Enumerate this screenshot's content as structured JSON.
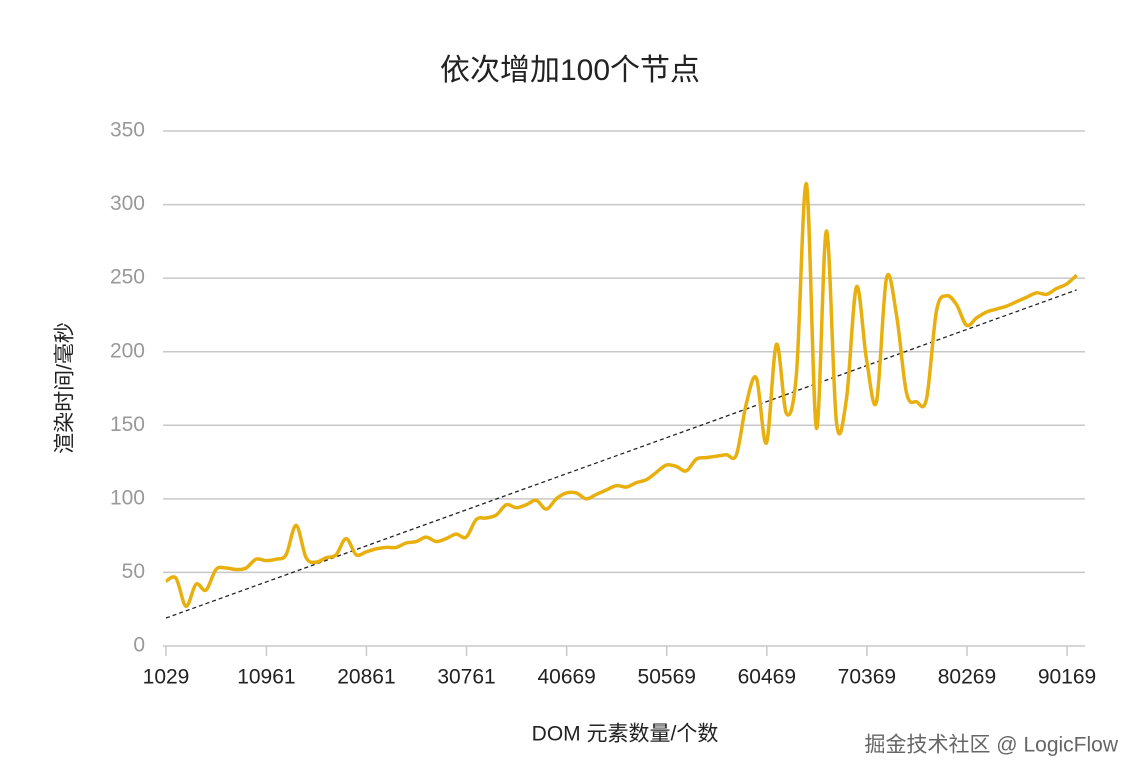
{
  "chart_data": {
    "type": "line",
    "title": "依次增加100个节点",
    "xlabel": "DOM 元素数量/个数",
    "ylabel": "渲染时间/毫秒",
    "x": [
      1029,
      2019,
      3009,
      3999,
      4989,
      5979,
      6969,
      7959,
      8949,
      9939,
      10929,
      11919,
      12909,
      13899,
      14889,
      15879,
      16869,
      17859,
      18849,
      19839,
      20829,
      21819,
      22809,
      23799,
      24789,
      25779,
      26769,
      27759,
      28749,
      29739,
      30729,
      31719,
      32709,
      33699,
      34689,
      35679,
      36669,
      37659,
      38649,
      39639,
      40629,
      41619,
      42609,
      43599,
      44589,
      45579,
      46569,
      47559,
      48549,
      49539,
      50529,
      51519,
      52509,
      53499,
      54489,
      55479,
      56469,
      57459,
      58449,
      59439,
      60429,
      61419,
      62409,
      63399,
      64389,
      65379,
      66369,
      67359,
      68349,
      69339,
      70329,
      71319,
      72309,
      73299,
      74289,
      75279,
      76269,
      77259,
      78249,
      79239,
      80229,
      81219,
      82209,
      83199,
      84189,
      85179,
      86169,
      87159,
      88149,
      89139,
      90129,
      91119
    ],
    "values": [
      44,
      46,
      27,
      42,
      38,
      52,
      53,
      52,
      53,
      59,
      58,
      59,
      62,
      82,
      60,
      57,
      60,
      62,
      73,
      62,
      64,
      66,
      67,
      67,
      70,
      71,
      74,
      71,
      73,
      76,
      74,
      86,
      87,
      89,
      96,
      94,
      96,
      99,
      93,
      100,
      104,
      104,
      100,
      103,
      106,
      109,
      108,
      111,
      113,
      118,
      123,
      122,
      119,
      127,
      128,
      129,
      130,
      130,
      165,
      182,
      138,
      205,
      158,
      185,
      314,
      148,
      282,
      152,
      168,
      244,
      195,
      166,
      250,
      225,
      172,
      166,
      168,
      228,
      238,
      232,
      218,
      223,
      227,
      229,
      231,
      234,
      237,
      240,
      239,
      243,
      246,
      252
    ],
    "color": "#e8b00e",
    "trend": {
      "x": [
        1029,
        91119
      ],
      "values": [
        19,
        242
      ],
      "color": "#222222"
    },
    "xlim": [
      732,
      91947
    ],
    "xticks": [
      1029,
      10961,
      20861,
      30761,
      40669,
      50569,
      60469,
      70369,
      80269,
      90169
    ],
    "ylim": [
      0,
      350
    ],
    "yticks": [
      0,
      50,
      100,
      150,
      200,
      250,
      300,
      350
    ],
    "grid": true,
    "watermark": "掘金技术社区 @ LogicFlow"
  }
}
